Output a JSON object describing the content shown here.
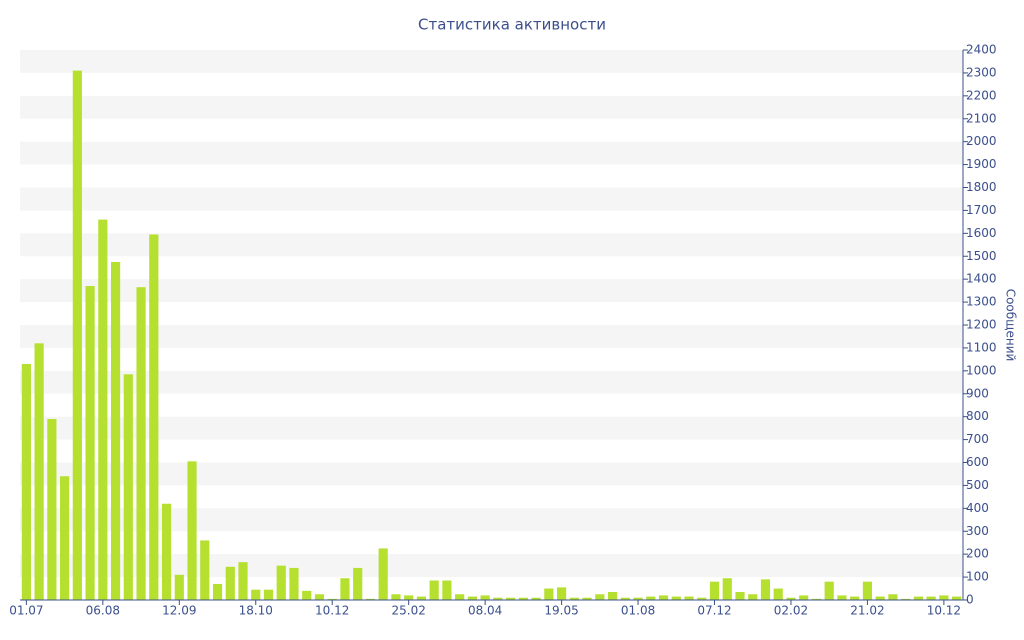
{
  "chart_data": {
    "type": "bar",
    "title": "Статистика активности",
    "y_label": "Сообщений",
    "categories": [
      "01.07",
      null,
      null,
      null,
      null,
      null,
      "06.08",
      null,
      null,
      null,
      null,
      null,
      "12.09",
      null,
      null,
      null,
      null,
      null,
      "18.10",
      null,
      null,
      null,
      null,
      null,
      "10.12",
      null,
      null,
      null,
      null,
      null,
      "25.02",
      null,
      null,
      null,
      null,
      null,
      "08.04",
      null,
      null,
      null,
      null,
      null,
      "19.05",
      null,
      null,
      null,
      null,
      null,
      "01.08",
      null,
      null,
      null,
      null,
      null,
      "07.12",
      null,
      null,
      null,
      null,
      null,
      "02.02",
      null,
      null,
      null,
      null,
      null,
      "21.02",
      null,
      null,
      null,
      null,
      null,
      "10.12",
      null
    ],
    "values": [
      1030,
      1120,
      790,
      540,
      2310,
      1370,
      1660,
      1475,
      985,
      1365,
      1595,
      420,
      110,
      605,
      260,
      70,
      145,
      165,
      45,
      45,
      150,
      140,
      40,
      25,
      5,
      95,
      140,
      5,
      225,
      25,
      20,
      15,
      85,
      85,
      25,
      15,
      20,
      10,
      10,
      10,
      10,
      50,
      55,
      10,
      10,
      25,
      35,
      10,
      10,
      15,
      20,
      15,
      15,
      10,
      80,
      95,
      35,
      25,
      90,
      50,
      10,
      20,
      5,
      80,
      20,
      15,
      80,
      15,
      25,
      5,
      15,
      15,
      20,
      15
    ],
    "color": "#b5e02f",
    "ylim": [
      0,
      2400
    ],
    "yticks": [
      0,
      100,
      200,
      300,
      400,
      500,
      600,
      700,
      800,
      900,
      1000,
      1100,
      1200,
      1300,
      1400,
      1500,
      1600,
      1700,
      1800,
      1900,
      2000,
      2100,
      2200,
      2300,
      2400
    ],
    "grid": true
  }
}
